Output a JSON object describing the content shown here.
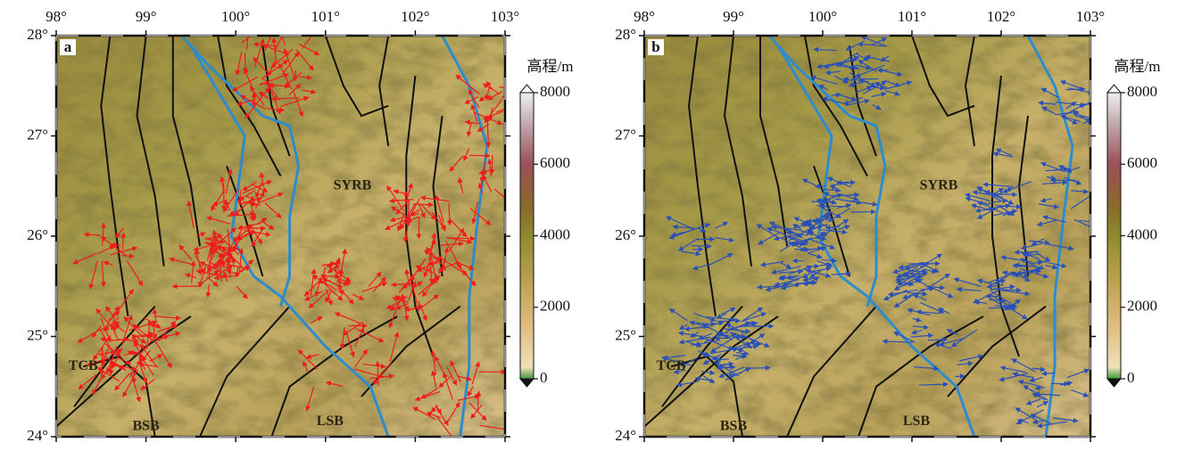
{
  "panels": [
    {
      "label": "a",
      "arrow_color": "#ee1c1c",
      "xticks": [
        {
          "value": 98,
          "label": "98°"
        },
        {
          "value": 99,
          "label": "99°"
        },
        {
          "value": 100,
          "label": "100°"
        },
        {
          "value": 101,
          "label": "101°"
        },
        {
          "value": 102,
          "label": "102°"
        },
        {
          "value": 103,
          "label": "103°"
        }
      ],
      "yticks": [
        {
          "value": 24,
          "label": "24°"
        },
        {
          "value": 25,
          "label": "25°"
        },
        {
          "value": 26,
          "label": "26°"
        },
        {
          "value": 27,
          "label": "27°"
        },
        {
          "value": 28,
          "label": "28°"
        }
      ],
      "regions": [
        "TCB",
        "BSB",
        "LSB",
        "SYRB"
      ],
      "colorbar": {
        "title": "高程/m",
        "ticks": [
          0,
          2000,
          4000,
          6000,
          8000
        ]
      }
    },
    {
      "label": "b",
      "arrow_color": "#2a50b8",
      "xticks": [
        {
          "value": 98,
          "label": "98°"
        },
        {
          "value": 99,
          "label": "99°"
        },
        {
          "value": 100,
          "label": "100°"
        },
        {
          "value": 101,
          "label": "101°"
        },
        {
          "value": 102,
          "label": "102°"
        },
        {
          "value": 103,
          "label": "103°"
        }
      ],
      "yticks": [
        {
          "value": 24,
          "label": "24°"
        },
        {
          "value": 25,
          "label": "25°"
        },
        {
          "value": 26,
          "label": "26°"
        },
        {
          "value": 27,
          "label": "27°"
        },
        {
          "value": 28,
          "label": "28°"
        }
      ],
      "regions": [
        "TCB",
        "BSB",
        "LSB",
        "SYRB"
      ],
      "colorbar": {
        "title": "高程/m",
        "ticks": [
          0,
          2000,
          4000,
          6000,
          8000
        ]
      }
    }
  ]
}
